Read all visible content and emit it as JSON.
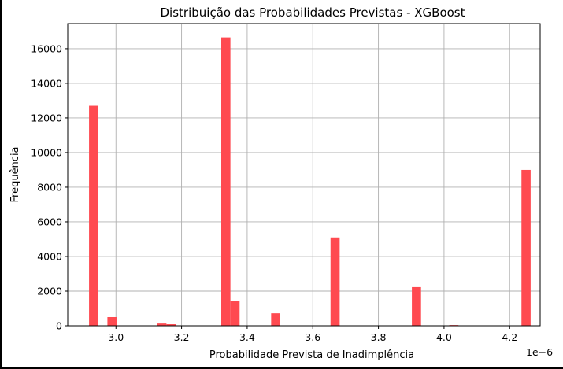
{
  "chart_data": {
    "type": "bar",
    "title": "Distribuição das Probabilidades Previstas - XGBoost",
    "xlabel": "Probabilidade Prevista de Inadimplência",
    "ylabel": "Frequência",
    "x_offset_label": "1e−6",
    "xlim": [
      2.853,
      4.293
    ],
    "ylim": [
      0,
      17450
    ],
    "x_ticks": [
      3.0,
      3.2,
      3.4,
      3.6,
      3.8,
      4.0,
      4.2
    ],
    "x_tick_labels": [
      "3.0",
      "3.2",
      "3.4",
      "3.6",
      "3.8",
      "4.0",
      "4.2"
    ],
    "y_ticks": [
      0,
      2000,
      4000,
      6000,
      8000,
      10000,
      12000,
      14000,
      16000
    ],
    "y_tick_labels": [
      "0",
      "2000",
      "4000",
      "6000",
      "8000",
      "10000",
      "12000",
      "14000",
      "16000"
    ],
    "grid": true,
    "bar_color": "#ff4a50",
    "bin_width": 0.0279,
    "bins": [
      {
        "x0": 2.918,
        "value": 12700
      },
      {
        "x0": 2.974,
        "value": 500
      },
      {
        "x0": 3.126,
        "value": 130
      },
      {
        "x0": 3.154,
        "value": 90
      },
      {
        "x0": 3.321,
        "value": 16650
      },
      {
        "x0": 3.349,
        "value": 1450
      },
      {
        "x0": 3.473,
        "value": 720
      },
      {
        "x0": 3.654,
        "value": 5100
      },
      {
        "x0": 3.902,
        "value": 2230
      },
      {
        "x0": 4.016,
        "value": 40
      },
      {
        "x0": 4.236,
        "value": 9000
      }
    ]
  }
}
